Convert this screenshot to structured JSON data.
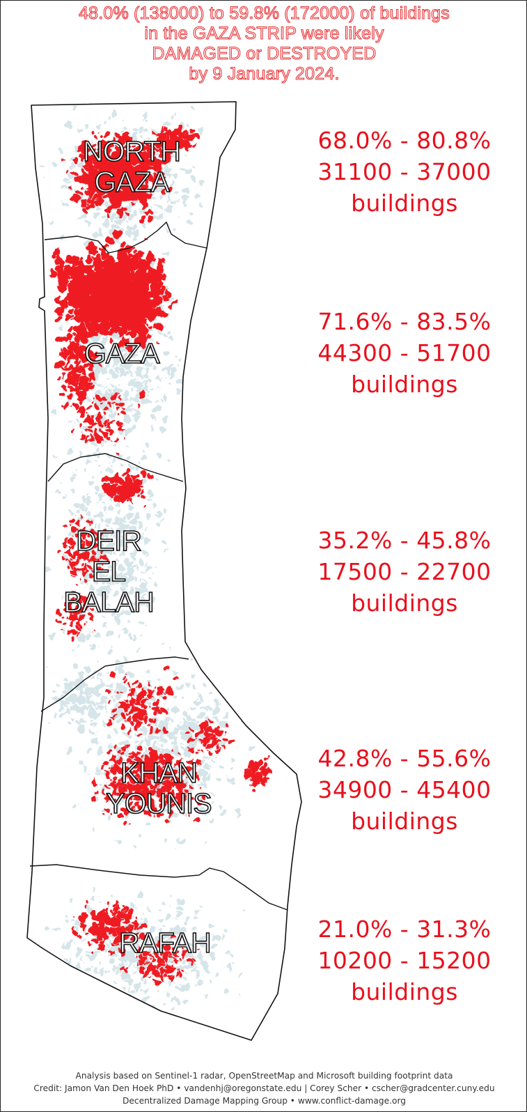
{
  "title": {
    "line1": "48.0% (138000) to 59.8% (172000) of buildings",
    "line2": "in the GAZA STRIP were likely",
    "line3": "DAMAGED or DESTROYED",
    "line4": "by 9 January 2024."
  },
  "regions": [
    {
      "label_lines": [
        "NORTH",
        "GAZA"
      ],
      "damage_percent_range": "68.0% - 80.8%",
      "buildings_range": "31100 - 37000",
      "unit": "buildings"
    },
    {
      "label_lines": [
        "GAZA"
      ],
      "damage_percent_range": "71.6% - 83.5%",
      "buildings_range": "44300 - 51700",
      "unit": "buildings"
    },
    {
      "label_lines": [
        "DEIR",
        "EL",
        "BALAH"
      ],
      "damage_percent_range": "35.2% - 45.8%",
      "buildings_range": "17500 - 22700",
      "unit": "buildings"
    },
    {
      "label_lines": [
        "KHAN",
        "YOUNIS"
      ],
      "damage_percent_range": "42.8% - 55.6%",
      "buildings_range": "34900 - 45400",
      "unit": "buildings"
    },
    {
      "label_lines": [
        "RAFAH"
      ],
      "damage_percent_range": "21.0% - 31.3%",
      "buildings_range": "10200 - 15200",
      "unit": "buildings"
    }
  ],
  "credits": {
    "line1": "Analysis based on Sentinel-1 radar, OpenStreetMap and Microsoft building footprint data",
    "line2": "Credit: Jamon Van Den Hoek PhD • vandenhj@oregonstate.edu | Corey Scher • cscher@gradcenter.cuny.edu",
    "line3": "Decentralized Damage Mapping Group • www.conflict-damage.org"
  },
  "colors": {
    "damage": "#ee1c24",
    "buildings": "#c9dde2",
    "boundary": "#111111",
    "text_red": "#e8101c"
  }
}
